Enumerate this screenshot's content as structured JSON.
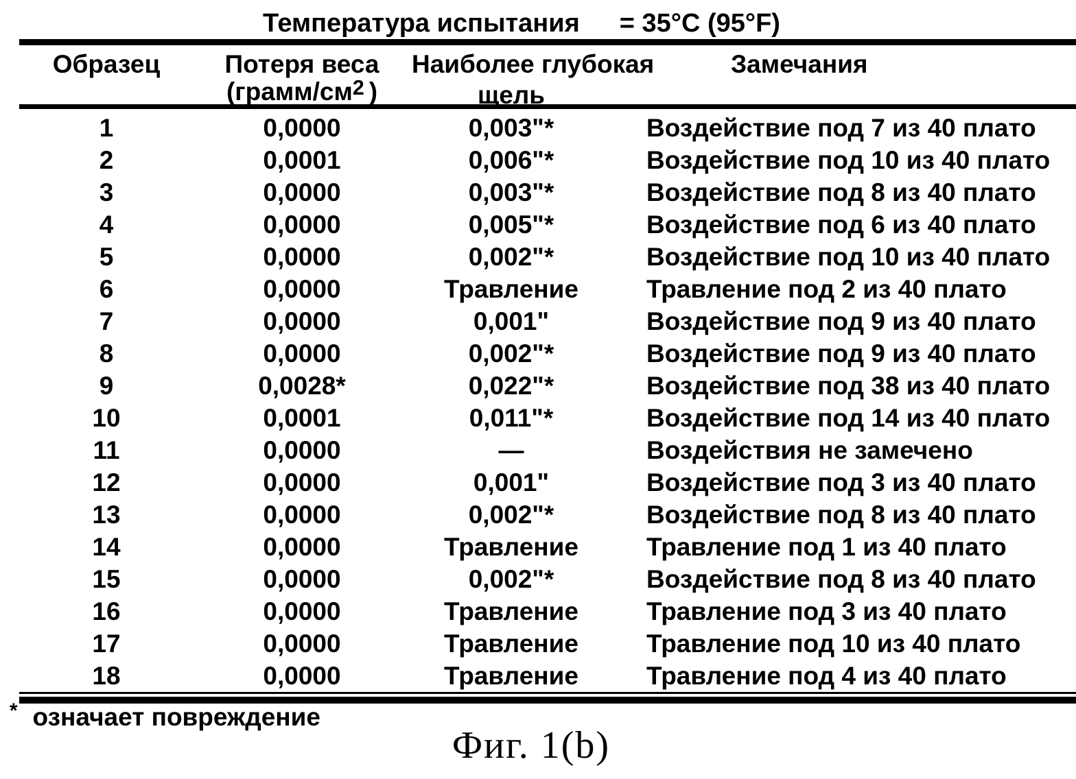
{
  "figure": {
    "title_left": "Температура испытания",
    "title_right": "= 35°C (95°F)",
    "footnote_marker": "*",
    "footnote_text": "означает повреждение",
    "caption": "Фиг. 1(b)"
  },
  "table": {
    "headers": {
      "sample": "Образец",
      "weight_loss_line1": "Потеря веса",
      "weight_loss_unit_prefix": "(грамм/см",
      "weight_loss_unit_sup": "2",
      "weight_loss_unit_suffix": ")",
      "crevice_line1": "Наиболее глубокая",
      "crevice_line2": "щель",
      "remarks": "Замечания"
    },
    "rows": [
      {
        "sample": "1",
        "weight_loss": "0,0000",
        "crevice": "0,003\"*",
        "remark": "Воздействие под 7 из 40 плато"
      },
      {
        "sample": "2",
        "weight_loss": "0,0001",
        "crevice": "0,006\"*",
        "remark": "Воздействие под 10 из 40 плато"
      },
      {
        "sample": "3",
        "weight_loss": "0,0000",
        "crevice": "0,003\"*",
        "remark": "Воздействие под 8 из 40 плато"
      },
      {
        "sample": "4",
        "weight_loss": "0,0000",
        "crevice": "0,005\"*",
        "remark": "Воздействие под 6 из 40 плато"
      },
      {
        "sample": "5",
        "weight_loss": "0,0000",
        "crevice": "0,002\"*",
        "remark": "Воздействие под 10 из 40 плато"
      },
      {
        "sample": "6",
        "weight_loss": "0,0000",
        "crevice": "Травление",
        "remark": "Травление под 2 из 40 плато"
      },
      {
        "sample": "7",
        "weight_loss": "0,0000",
        "crevice": "0,001\"",
        "remark": "Воздействие под 9 из 40 плато"
      },
      {
        "sample": "8",
        "weight_loss": "0,0000",
        "crevice": "0,002\"*",
        "remark": "Воздействие под 9 из 40 плато"
      },
      {
        "sample": "9",
        "weight_loss": "0,0028*",
        "crevice": "0,022\"*",
        "remark": "Воздействие под 38 из 40 плато"
      },
      {
        "sample": "10",
        "weight_loss": "0,0001",
        "crevice": "0,011\"*",
        "remark": "Воздействие под 14 из 40 плато"
      },
      {
        "sample": "11",
        "weight_loss": "0,0000",
        "crevice": "—",
        "remark": "Воздействия не замечено"
      },
      {
        "sample": "12",
        "weight_loss": "0,0000",
        "crevice": "0,001\"",
        "remark": "Воздействие под 3 из 40 плато"
      },
      {
        "sample": "13",
        "weight_loss": "0,0000",
        "crevice": "0,002\"*",
        "remark": "Воздействие под 8 из 40 плато"
      },
      {
        "sample": "14",
        "weight_loss": "0,0000",
        "crevice": "Травление",
        "remark": "Травление под 1 из 40 плато"
      },
      {
        "sample": "15",
        "weight_loss": "0,0000",
        "crevice": "0,002\"*",
        "remark": "Воздействие под 8 из 40 плато"
      },
      {
        "sample": "16",
        "weight_loss": "0,0000",
        "crevice": "Травление",
        "remark": "Травление под 3 из 40 плато"
      },
      {
        "sample": "17",
        "weight_loss": "0,0000",
        "crevice": "Травление",
        "remark": "Травление под 10 из 40 плато"
      },
      {
        "sample": "18",
        "weight_loss": "0,0000",
        "crevice": "Травление",
        "remark": "Травление под 4 из 40 плато"
      }
    ]
  },
  "colors": {
    "ink": "#000000",
    "paper": "#ffffff"
  }
}
